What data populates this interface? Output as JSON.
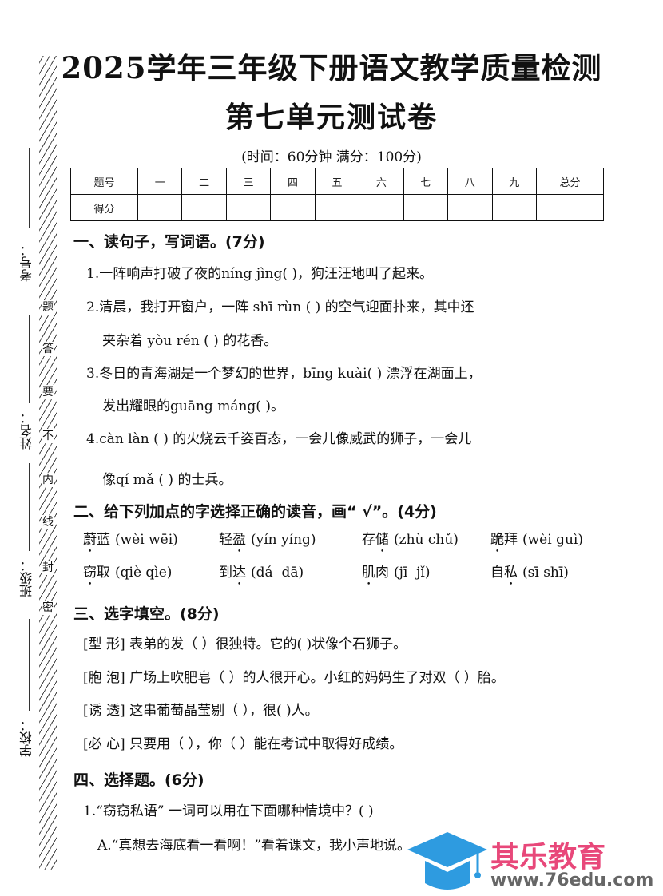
{
  "title_line1": "2025学年三年级下册语文教学质量检测",
  "title_line2": "第七单元测试卷",
  "subtitle": "(时间：60分钟    满分：100分)",
  "score_table": {
    "row1": [
      "题号",
      "一",
      "二",
      "三",
      "四",
      "五",
      "六",
      "七",
      "八",
      "九",
      "总分"
    ],
    "row2_label": "得分"
  },
  "binding_margin": {
    "fields": [
      "考号：",
      "姓名：",
      "班级：",
      "学校："
    ],
    "notice": [
      "题",
      "答",
      "要",
      "不",
      "内",
      "线",
      "封",
      "密"
    ]
  },
  "sections": {
    "s1": {
      "heading": "一、读句子，写词语。(7分)",
      "lines": [
        "1.一阵响声打破了夜的níng jìng(      )，狗汪汪地叫了起来。",
        "2.清晨，我打开窗户，一阵 shī rùn (      ) 的空气迎面扑来，其中还",
        "夹杂着 yòu rén (      ) 的花香。",
        "3.冬日的青海湖是一个梦幻的世界，bīng kuài(      ) 漂浮在湖面上，",
        "发出耀眼的guāng máng(      )。",
        "4.càn làn (      ) 的火烧云千姿百态，一会儿像威武的狮子，一会儿",
        "像qí mǎ (      ) 的士兵。"
      ]
    },
    "s2": {
      "heading": "二、给下列加点的字选择正确的读音，画“ √”。(4分)",
      "items": [
        {
          "w1": "蔚",
          "w2": "蓝",
          "py": "(wèi wēi)"
        },
        {
          "w1": "轻",
          "w2": "盈",
          "py": "(yín yíng)",
          "dot2": true
        },
        {
          "w1": "存",
          "w2": "储",
          "py": "(zhù chǔ)",
          "dot2": true
        },
        {
          "w1": "跪",
          "w2": "拜",
          "py": "(wèi guì)"
        },
        {
          "w1": "窃",
          "w2": "取",
          "py": "(qiè qìe)"
        },
        {
          "w1": "到",
          "w2": "达",
          "py": "(dá  dā)",
          "dot2": true
        },
        {
          "w1": "肌",
          "w2": "肉",
          "py": "(jī  jǐ)"
        },
        {
          "w1": "自",
          "w2": "私",
          "py": "(sī shī)",
          "dot2": true
        }
      ]
    },
    "s3": {
      "heading": "三、选字填空。(8分)",
      "lines": [
        "[型 形] 表弟的发（   ）很独特。它的(   )状像个石狮子。",
        "[胞 泡] 广场上吹肥皂（   ）的人很开心。小红的妈妈生了对双（   ）胎。",
        "[诱 透] 这串葡萄晶莹剔（   ），很(   )人。",
        "[必 心] 只要用（   ），你（   ）能在考试中取得好成绩。"
      ]
    },
    "s4": {
      "heading": "四、选择题。(6分)",
      "lines": [
        "1.“窃窃私语” 一词可以用在下面哪种情境中？(      )",
        "A.“真想去海底看一看啊！”看着课文，我小声地说。"
      ]
    }
  },
  "watermark": {
    "name": "其乐教育",
    "url": "www.76edu.com",
    "colors": {
      "text": "#e8487a",
      "cap": "#2e9be0"
    }
  }
}
